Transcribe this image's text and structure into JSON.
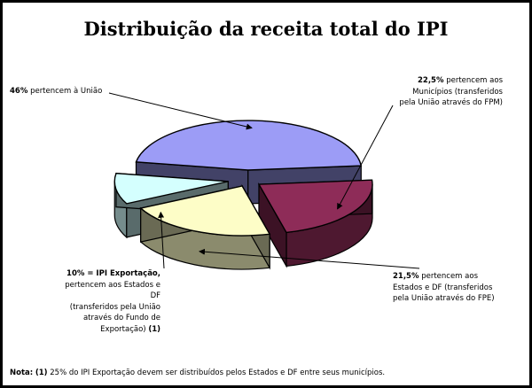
{
  "title": "Distribuição da receita total do IPI",
  "chart_data": {
    "type": "pie",
    "title": "Distribuição da receita total do IPI",
    "unit": "%",
    "slices": [
      {
        "value": 22.5,
        "value_label": "22,5%",
        "text": "pertencem aos",
        "lines": [
          "Municípios (transferidos",
          "pela União através do FPM)"
        ],
        "color": "#8e2c58"
      },
      {
        "value": 21.5,
        "value_label": "21,5%",
        "text": "pertencem aos",
        "lines": [
          "Estados e DF (transferidos",
          "pela União através do FPE)"
        ],
        "color": "#fdfdc7"
      },
      {
        "value": 10,
        "value_label": "10% = IPI Exportação,",
        "lines": [
          "pertencem aos Estados e DF",
          "(transferidos pela União",
          "através do Fundo de"
        ],
        "tail_text": "Exportação)",
        "footnote_ref": "(1)",
        "color": "#d4fffe"
      },
      {
        "value": 46,
        "value_label": "46%",
        "text": "pertencem à União",
        "color": "#9c9cf6"
      }
    ]
  },
  "note": {
    "label": "Nota:",
    "ref": "(1)",
    "text": "25% do IPI Exportação devem ser distribuídos pelos Estados e DF entre seus municípios."
  }
}
